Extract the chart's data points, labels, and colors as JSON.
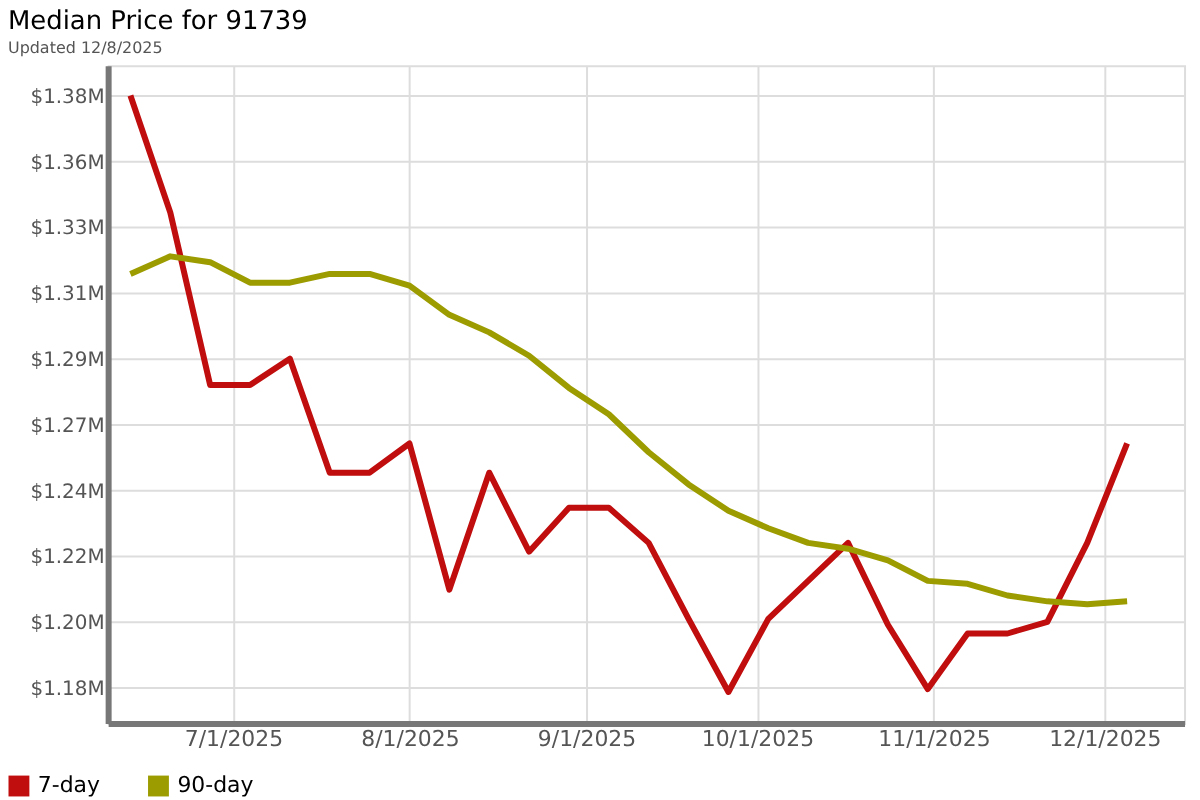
{
  "chart_data": {
    "type": "line",
    "title": "Median Price for 91739",
    "subtitle": "Updated 12/8/2025",
    "x": [
      "2025-06-13",
      "2025-06-20",
      "2025-06-27",
      "2025-07-04",
      "2025-07-11",
      "2025-07-18",
      "2025-07-25",
      "2025-08-01",
      "2025-08-08",
      "2025-08-15",
      "2025-08-22",
      "2025-08-29",
      "2025-09-05",
      "2025-09-12",
      "2025-09-19",
      "2025-09-26",
      "2025-10-03",
      "2025-10-10",
      "2025-10-17",
      "2025-10-24",
      "2025-10-31",
      "2025-11-07",
      "2025-11-14",
      "2025-11-21",
      "2025-11-28",
      "2025-12-05"
    ],
    "series": [
      {
        "name": "7-day",
        "color": "#c00d0d",
        "values": [
          1.38,
          1.34,
          1.281,
          1.281,
          1.29,
          1.251,
          1.251,
          1.261,
          1.211,
          1.251,
          1.224,
          1.239,
          1.239,
          1.227,
          1.201,
          1.176,
          1.201,
          1.214,
          1.227,
          1.199,
          1.177,
          1.196,
          1.196,
          1.2,
          1.227,
          1.261
        ]
      },
      {
        "name": "90-day",
        "color": "#9c9c00",
        "values": [
          1.319,
          1.325,
          1.323,
          1.316,
          1.316,
          1.319,
          1.319,
          1.315,
          1.305,
          1.299,
          1.291,
          1.28,
          1.271,
          1.258,
          1.247,
          1.238,
          1.232,
          1.227,
          1.225,
          1.221,
          1.214,
          1.213,
          1.209,
          1.207,
          1.206,
          1.207
        ]
      }
    ],
    "xlim": [
      "2025-06-09",
      "2025-12-15"
    ],
    "xticks": [
      {
        "value": "2025-07-01",
        "label": "7/1/2025"
      },
      {
        "value": "2025-08-01",
        "label": "8/1/2025"
      },
      {
        "value": "2025-09-01",
        "label": "9/1/2025"
      },
      {
        "value": "2025-10-01",
        "label": "10/1/2025"
      },
      {
        "value": "2025-11-01",
        "label": "11/1/2025"
      },
      {
        "value": "2025-12-01",
        "label": "12/1/2025"
      }
    ],
    "ylim": [
      1.1654,
      1.3904
    ],
    "yticks": [
      {
        "value": 1.1774,
        "label": "$1.18M"
      },
      {
        "value": 1.1999,
        "label": "$1.20M"
      },
      {
        "value": 1.2224,
        "label": "$1.22M"
      },
      {
        "value": 1.2449,
        "label": "$1.24M"
      },
      {
        "value": 1.2674,
        "label": "$1.27M"
      },
      {
        "value": 1.2899,
        "label": "$1.29M"
      },
      {
        "value": 1.3124,
        "label": "$1.31M"
      },
      {
        "value": 1.3349,
        "label": "$1.33M"
      },
      {
        "value": 1.3574,
        "label": "$1.36M"
      },
      {
        "value": 1.3799,
        "label": "$1.38M"
      }
    ],
    "grid": true,
    "legend": "bottom left",
    "marker": "none",
    "line_style": "solid"
  }
}
